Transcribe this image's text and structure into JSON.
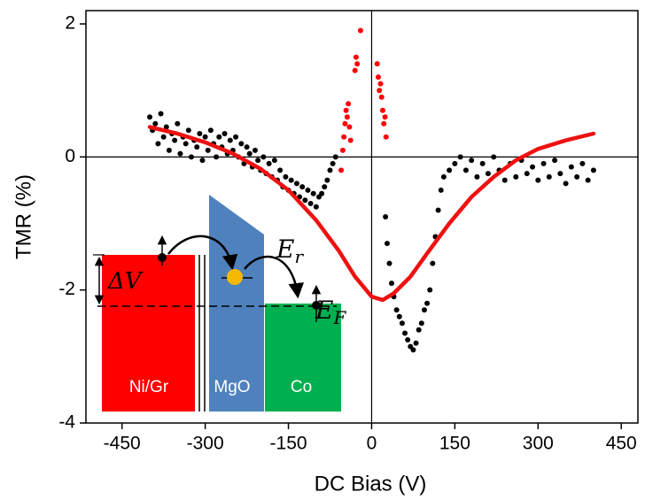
{
  "chart_data": {
    "type": "scatter",
    "x_label": "DC Bias (V)",
    "y_label": "TMR (%)",
    "xlim": [
      -515,
      480
    ],
    "ylim": [
      -4,
      2.2
    ],
    "xticks": [
      -450,
      -300,
      -150,
      0,
      150,
      300,
      450
    ],
    "yticks": [
      -4,
      -2,
      0,
      2
    ],
    "zero_lines": true,
    "series": [
      {
        "color": "#000000",
        "kind": "points",
        "x": [
          -400,
          -395,
          -390,
          -385,
          -380,
          -375,
          -370,
          -365,
          -360,
          -355,
          -350,
          -345,
          -340,
          -335,
          -330,
          -325,
          -320,
          -315,
          -310,
          -305,
          -300,
          -295,
          -290,
          -285,
          -280,
          -275,
          -270,
          -265,
          -260,
          -255,
          -250,
          -245,
          -240,
          -235,
          -230,
          -225,
          -220,
          -215,
          -210,
          -205,
          -200,
          -195,
          -190,
          -185,
          -180,
          -175,
          -170,
          -165,
          -160,
          -155,
          -150,
          -145,
          -140,
          -135,
          -130,
          -125,
          -120,
          -115,
          -110,
          -105,
          -100,
          -95,
          -90,
          -85,
          -80,
          -75,
          -70,
          -65,
          25,
          28,
          32,
          36,
          40,
          45,
          50,
          55,
          60,
          65,
          70,
          75,
          80,
          85,
          90,
          95,
          100,
          105,
          110,
          115,
          120,
          125,
          130,
          140,
          150,
          160,
          170,
          180,
          190,
          200,
          210,
          220,
          230,
          240,
          250,
          260,
          270,
          280,
          290,
          300,
          310,
          320,
          330,
          340,
          350,
          360,
          370,
          380,
          390,
          400
        ],
        "values": [
          0.6,
          0.4,
          0.5,
          0.2,
          0.65,
          0.3,
          0.45,
          0.1,
          0.35,
          0.25,
          0.5,
          0.05,
          0.3,
          0.2,
          0.4,
          0.0,
          0.25,
          0.15,
          0.35,
          -0.05,
          0.3,
          0.1,
          0.4,
          0.2,
          0.0,
          0.3,
          0.15,
          0.35,
          0.05,
          0.25,
          0.1,
          0.3,
          0.0,
          0.2,
          -0.1,
          0.15,
          0.05,
          -0.15,
          0.1,
          -0.05,
          -0.2,
          0.0,
          -0.25,
          -0.1,
          -0.3,
          -0.05,
          -0.35,
          -0.2,
          -0.45,
          -0.3,
          -0.5,
          -0.35,
          -0.55,
          -0.4,
          -0.6,
          -0.45,
          -0.65,
          -0.5,
          -0.7,
          -0.55,
          -0.75,
          -0.6,
          -0.55,
          -0.45,
          -0.35,
          -0.2,
          -0.1,
          0.0,
          -0.9,
          -1.3,
          -1.6,
          -1.9,
          -2.1,
          -2.3,
          -2.4,
          -2.5,
          -2.65,
          -2.75,
          -2.85,
          -2.9,
          -2.8,
          -2.6,
          -2.5,
          -2.3,
          -2.2,
          -2.0,
          -1.6,
          -1.2,
          -0.8,
          -0.5,
          -0.3,
          -0.2,
          -0.1,
          0.0,
          -0.2,
          -0.05,
          -0.3,
          -0.1,
          -0.25,
          0.0,
          -0.2,
          -0.35,
          -0.1,
          -0.3,
          -0.05,
          -0.25,
          -0.15,
          -0.35,
          -0.1,
          -0.3,
          -0.05,
          -0.25,
          -0.4,
          -0.15,
          -0.3,
          -0.1,
          -0.35,
          -0.2
        ]
      },
      {
        "color": "#ff0000",
        "kind": "points",
        "x": [
          -55,
          -52,
          -50,
          -48,
          -46,
          -44,
          -42,
          -40,
          -38,
          -30,
          -28,
          -26,
          -20,
          10,
          12,
          14,
          16,
          18,
          20,
          22,
          24,
          26
        ],
        "values": [
          -0.2,
          0.1,
          0.3,
          0.5,
          0.7,
          0.6,
          0.8,
          0.45,
          0.25,
          1.3,
          1.5,
          1.4,
          1.9,
          1.4,
          1.2,
          1.0,
          1.1,
          0.9,
          0.7,
          0.5,
          0.6,
          0.3
        ]
      },
      {
        "color": "#ee1111",
        "kind": "line",
        "x": [
          -400,
          -350,
          -300,
          -250,
          -200,
          -150,
          -100,
          -60,
          -30,
          0,
          20,
          40,
          70,
          100,
          140,
          180,
          220,
          260,
          300,
          350,
          400
        ],
        "values": [
          0.45,
          0.35,
          0.22,
          0.05,
          -0.18,
          -0.5,
          -0.95,
          -1.4,
          -1.8,
          -2.1,
          -2.15,
          -2.05,
          -1.8,
          -1.45,
          -1.0,
          -0.6,
          -0.3,
          -0.05,
          0.12,
          0.25,
          0.35
        ]
      }
    ],
    "inset_labels": [
      "ΔV",
      "E",
      "r",
      "E",
      "F",
      "Ni/Gr",
      "MgO",
      "Co"
    ]
  }
}
